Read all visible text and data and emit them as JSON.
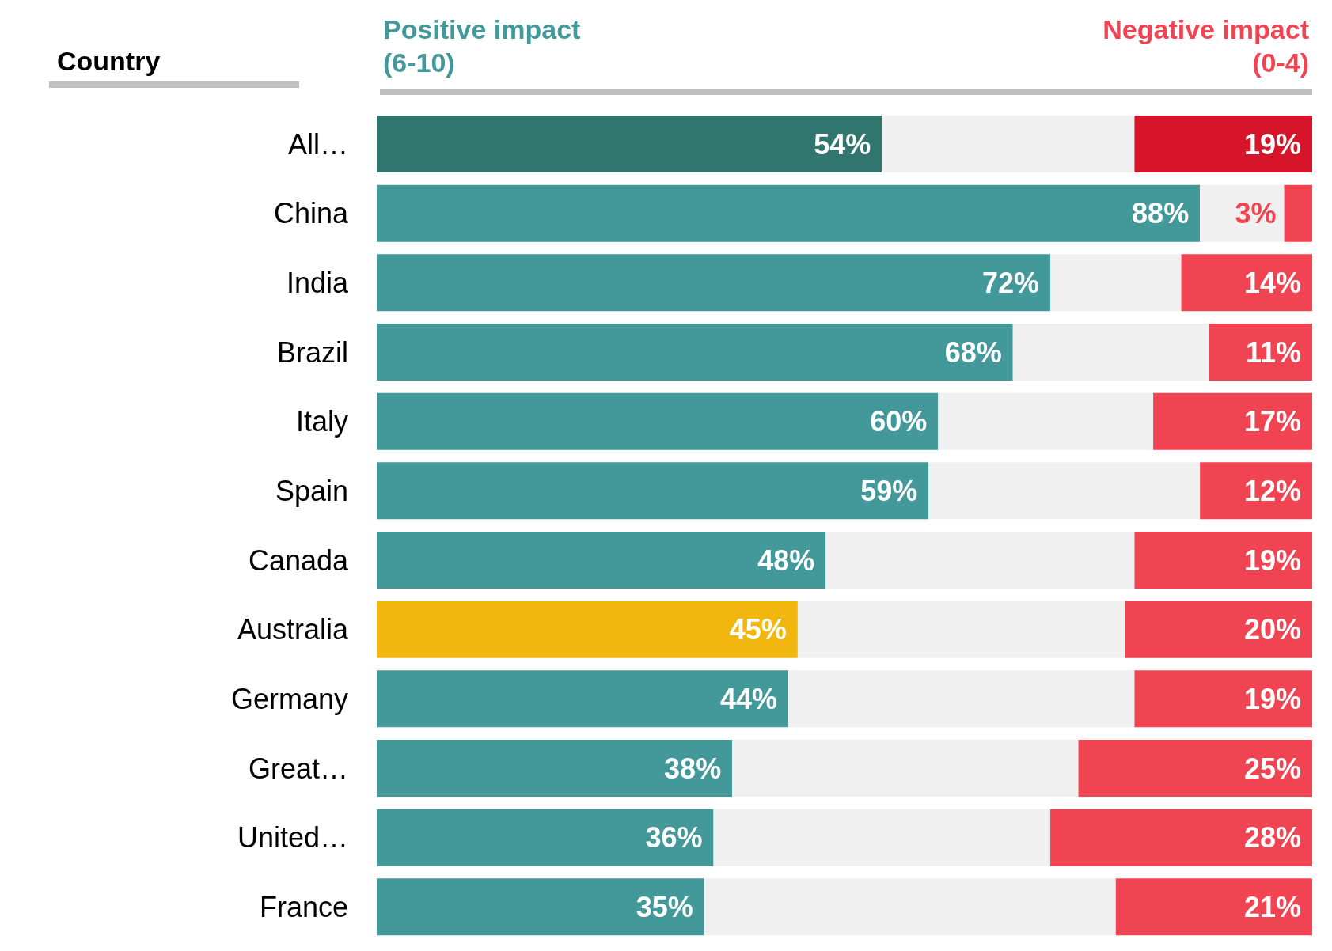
{
  "chart_data": {
    "type": "bar",
    "orientation": "horizontal",
    "stacked": true,
    "ylabel": "Country",
    "categories": [
      "All…",
      "China",
      "India",
      "Brazil",
      "Italy",
      "Spain",
      "Canada",
      "Australia",
      "Germany",
      "Great…",
      "United…",
      "France"
    ],
    "series": [
      {
        "name": "Positive impact\n(6-10)",
        "color": "#43999a",
        "colors": [
          "#31756f",
          "#43999a",
          "#43999a",
          "#43999a",
          "#43999a",
          "#43999a",
          "#43999a",
          "#f2b70f",
          "#43999a",
          "#43999a",
          "#43999a",
          "#43999a"
        ],
        "values": [
          54,
          88,
          72,
          68,
          60,
          59,
          48,
          45,
          44,
          38,
          36,
          35
        ],
        "value_labels": [
          "54%",
          "88%",
          "72%",
          "68%",
          "60%",
          "59%",
          "48%",
          "45%",
          "44%",
          "38%",
          "36%",
          "35%"
        ]
      },
      {
        "color": "#f0f0f0",
        "values": [
          27,
          9,
          14,
          21,
          23,
          29,
          33,
          35,
          37,
          37,
          36,
          44
        ]
      },
      {
        "name": "Negative impact\n(0-4)",
        "color": "#f04452",
        "colors": [
          "#d7152a",
          "#f04452",
          "#f04452",
          "#f04452",
          "#f04452",
          "#f04452",
          "#f04452",
          "#f04452",
          "#f04452",
          "#f04452",
          "#f04452",
          "#f04452"
        ],
        "values": [
          19,
          3,
          14,
          11,
          17,
          12,
          19,
          20,
          19,
          25,
          28,
          21
        ],
        "value_labels": [
          "19%",
          "3%",
          "14%",
          "11%",
          "17%",
          "12%",
          "19%",
          "20%",
          "19%",
          "25%",
          "28%",
          "21%"
        ]
      }
    ],
    "xlim": [
      0,
      100
    ],
    "tick_labels": "y",
    "legend": "top"
  }
}
